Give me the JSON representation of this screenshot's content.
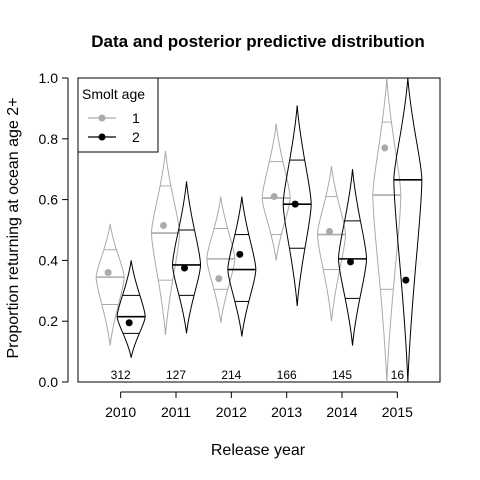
{
  "chart_data": {
    "type": "violin",
    "title": "Data and posterior predictive distribution",
    "xlabel": "Release year",
    "ylabel": "Proportion returning at ocean age 2+",
    "ylim": [
      0,
      1
    ],
    "yticks": [
      "0.0",
      "0.2",
      "0.4",
      "0.6",
      "0.8",
      "1.0"
    ],
    "categories": [
      "2010",
      "2011",
      "2012",
      "2013",
      "2014",
      "2015"
    ],
    "sample_sizes": [
      "312",
      "127",
      "214",
      "166",
      "145",
      "16"
    ],
    "legend": {
      "title": "Smolt age",
      "placement": "top-left",
      "entries": [
        {
          "label": "1",
          "color": "#aaaaaa"
        },
        {
          "label": "2",
          "color": "#000000"
        }
      ]
    },
    "series": [
      {
        "name": "1",
        "color": "#aaaaaa",
        "observed": [
          0.36,
          0.515,
          0.34,
          0.61,
          0.495,
          0.77
        ],
        "median": [
          0.345,
          0.49,
          0.405,
          0.605,
          0.485,
          0.615
        ],
        "q25": [
          0.255,
          0.335,
          0.305,
          0.485,
          0.37,
          0.305
        ],
        "q75": [
          0.435,
          0.645,
          0.505,
          0.725,
          0.61,
          0.855
        ],
        "min": [
          0.12,
          0.155,
          0.195,
          0.4,
          0.2,
          0.0
        ],
        "max": [
          0.52,
          0.76,
          0.61,
          0.85,
          0.71,
          1.0
        ]
      },
      {
        "name": "2",
        "color": "#000000",
        "observed": [
          0.195,
          0.375,
          0.42,
          0.585,
          0.395,
          0.335
        ],
        "median": [
          0.215,
          0.385,
          0.37,
          0.585,
          0.405,
          0.665
        ],
        "q25": [
          0.16,
          0.285,
          0.265,
          0.44,
          0.275,
          0.0
        ],
        "q75": [
          0.285,
          0.5,
          0.485,
          0.73,
          0.53,
          1.0
        ],
        "min": [
          0.08,
          0.16,
          0.15,
          0.25,
          0.12,
          0.0
        ],
        "max": [
          0.4,
          0.66,
          0.61,
          0.91,
          0.7,
          1.0
        ]
      }
    ]
  }
}
